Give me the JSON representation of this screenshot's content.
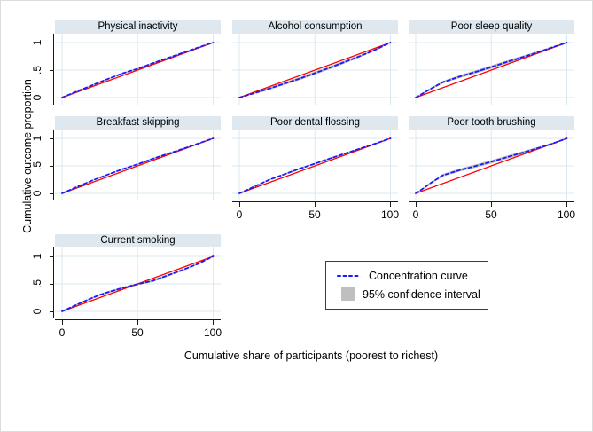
{
  "chart_data": {
    "type": "line",
    "title": "",
    "xlabel": "Cumulative share of participants (poorest to richest)",
    "ylabel": "Cumulative outcome proportion",
    "xlim": [
      0,
      100
    ],
    "ylim": [
      0,
      1
    ],
    "x_tick_labels": [
      "0",
      "50",
      "100"
    ],
    "y_tick_labels": [
      "0",
      ".5",
      "1"
    ],
    "grid": true,
    "legend_position": "below-right-of-panel-grid",
    "colors": {
      "curve": "#1a1aff",
      "equality": "#ff0000",
      "ci": "#bfbfbf",
      "panel_header": "#dfe8ee",
      "grid": "#dbe9f1",
      "axis": "#1a1a1a"
    },
    "equality_line": {
      "from": [
        0,
        0
      ],
      "to": [
        100,
        1
      ]
    },
    "panels": [
      {
        "title": "Physical inactivity",
        "x": [
          0,
          10,
          20,
          30,
          40,
          50,
          60,
          70,
          80,
          90,
          100
        ],
        "y": [
          0,
          0.115,
          0.225,
          0.335,
          0.44,
          0.525,
          0.625,
          0.72,
          0.815,
          0.91,
          1
        ],
        "ci": 0.013
      },
      {
        "title": "Alcohol consumption",
        "x": [
          0,
          10,
          20,
          30,
          40,
          50,
          60,
          70,
          80,
          90,
          100
        ],
        "y": [
          0,
          0.08,
          0.165,
          0.255,
          0.345,
          0.445,
          0.545,
          0.65,
          0.755,
          0.87,
          1
        ],
        "ci": 0.028
      },
      {
        "title": "Poor sleep quality",
        "x": [
          0,
          5,
          10,
          18,
          30,
          40,
          50,
          60,
          70,
          80,
          90,
          100
        ],
        "y": [
          0,
          0.08,
          0.16,
          0.28,
          0.39,
          0.47,
          0.555,
          0.645,
          0.73,
          0.815,
          0.91,
          1
        ],
        "ci": 0.03
      },
      {
        "title": "Breakfast skipping",
        "x": [
          0,
          10,
          20,
          30,
          40,
          50,
          60,
          70,
          80,
          90,
          100
        ],
        "y": [
          0,
          0.12,
          0.235,
          0.34,
          0.44,
          0.53,
          0.63,
          0.72,
          0.81,
          0.905,
          1
        ],
        "ci": 0.013
      },
      {
        "title": "Poor dental flossing",
        "x": [
          0,
          10,
          20,
          30,
          40,
          50,
          60,
          70,
          80,
          90,
          100
        ],
        "y": [
          0,
          0.125,
          0.25,
          0.35,
          0.45,
          0.54,
          0.635,
          0.725,
          0.815,
          0.905,
          1
        ],
        "ci": 0.016
      },
      {
        "title": "Poor tooth brushing",
        "x": [
          0,
          5,
          10,
          18,
          30,
          40,
          50,
          60,
          70,
          80,
          90,
          100
        ],
        "y": [
          0,
          0.09,
          0.19,
          0.33,
          0.43,
          0.5,
          0.575,
          0.655,
          0.735,
          0.815,
          0.9,
          1
        ],
        "ci": 0.03
      },
      {
        "title": "Current smoking",
        "x": [
          0,
          10,
          20,
          25,
          30,
          40,
          50,
          60,
          70,
          80,
          90,
          100
        ],
        "y": [
          0,
          0.125,
          0.245,
          0.3,
          0.345,
          0.425,
          0.495,
          0.555,
          0.655,
          0.755,
          0.865,
          1
        ],
        "ci": 0.022
      }
    ]
  },
  "legend": {
    "items": [
      {
        "label": "Concentration curve",
        "marker": "dotted-line"
      },
      {
        "label": "95% confidence interval",
        "marker": "filled-box"
      }
    ]
  }
}
